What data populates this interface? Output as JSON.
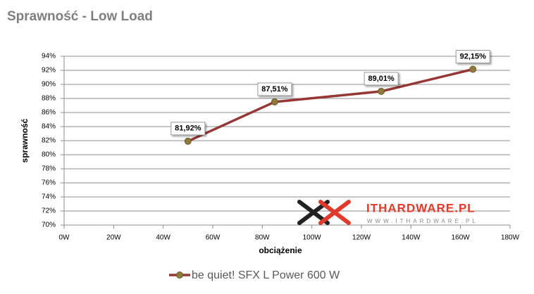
{
  "chart_data": {
    "type": "line",
    "title": "Sprawność - Low Load",
    "x_label": "obciążenie",
    "y_label": "sprawność",
    "x": [
      50,
      85,
      128,
      165
    ],
    "series": [
      {
        "name": "be quiet! SFX L Power 600 W",
        "color": "#953735",
        "values": [
          81.92,
          87.51,
          89.01,
          92.15
        ],
        "value_labels": [
          "81,92%",
          "87,51%",
          "89,01%",
          "92,15%"
        ]
      }
    ],
    "xlim": [
      0,
      180
    ],
    "xticks": [
      {
        "value": 0,
        "label": "0W"
      },
      {
        "value": 20,
        "label": "20W"
      },
      {
        "value": 40,
        "label": "40W"
      },
      {
        "value": 60,
        "label": "60W"
      },
      {
        "value": 80,
        "label": "80W"
      },
      {
        "value": 100,
        "label": "100W"
      },
      {
        "value": 120,
        "label": "120W"
      },
      {
        "value": 140,
        "label": "140W"
      },
      {
        "value": 160,
        "label": "160W"
      },
      {
        "value": 180,
        "label": "180W"
      }
    ],
    "ylim": [
      70,
      94
    ],
    "yticks": [
      {
        "value": 70,
        "label": "70%"
      },
      {
        "value": 72,
        "label": "72%"
      },
      {
        "value": 74,
        "label": "74%"
      },
      {
        "value": 76,
        "label": "76%"
      },
      {
        "value": 78,
        "label": "78%"
      },
      {
        "value": 80,
        "label": "80%"
      },
      {
        "value": 82,
        "label": "82%"
      },
      {
        "value": 84,
        "label": "84%"
      },
      {
        "value": 86,
        "label": "86%"
      },
      {
        "value": 88,
        "label": "88%"
      },
      {
        "value": 90,
        "label": "90%"
      },
      {
        "value": 92,
        "label": "92%"
      },
      {
        "value": 94,
        "label": "94%"
      }
    ],
    "grid": true,
    "watermark": {
      "brand": "ITHARDWARE.PL",
      "url": "WWW.ITHARDWARE.PL"
    }
  }
}
